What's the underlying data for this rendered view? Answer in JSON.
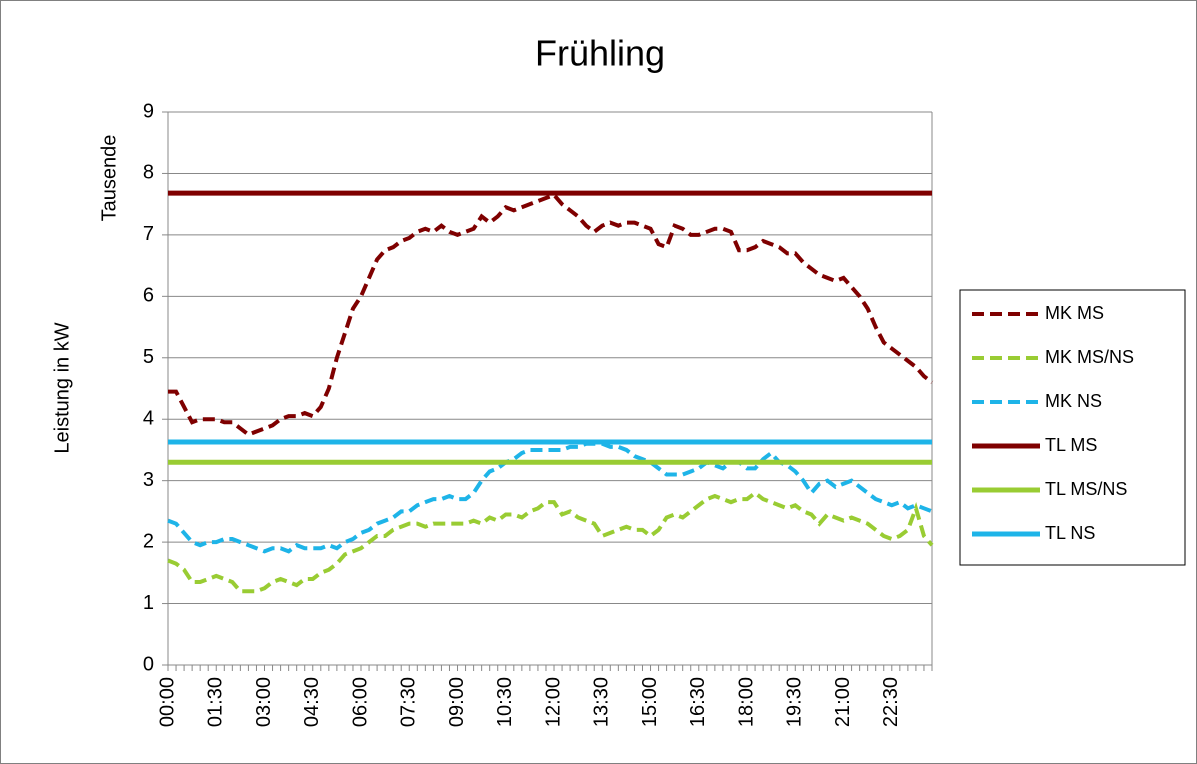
{
  "chart_data": {
    "type": "line",
    "title": "Frühling",
    "y_label": "Leistung in kW",
    "y_unit_label": "Tausende",
    "categories": [
      "00:00",
      null,
      null,
      null,
      null,
      null,
      "01:30",
      null,
      null,
      null,
      null,
      null,
      "03:00",
      null,
      null,
      null,
      null,
      null,
      "04:30",
      null,
      null,
      null,
      null,
      null,
      "06:00",
      null,
      null,
      null,
      null,
      null,
      "07:30",
      null,
      null,
      null,
      null,
      null,
      "09:00",
      null,
      null,
      null,
      null,
      null,
      "10:30",
      null,
      null,
      null,
      null,
      null,
      "12:00",
      null,
      null,
      null,
      null,
      null,
      "13:30",
      null,
      null,
      null,
      null,
      null,
      "15:00",
      null,
      null,
      null,
      null,
      null,
      "16:30",
      null,
      null,
      null,
      null,
      null,
      "18:00",
      null,
      null,
      null,
      null,
      null,
      "19:30",
      null,
      null,
      null,
      null,
      null,
      "21:00",
      null,
      null,
      null,
      null,
      null,
      "22:30",
      null,
      null,
      null,
      null,
      null
    ],
    "ylim": [
      0,
      9
    ],
    "yticks": [
      0,
      1,
      2,
      3,
      4,
      5,
      6,
      7,
      8,
      9
    ],
    "grid": true,
    "legend": "right",
    "series": [
      {
        "name": "MK MS",
        "color": "#7f0000",
        "dash": true,
        "values": [
          4.45,
          4.45,
          4.2,
          3.95,
          4.0,
          4.0,
          4.0,
          3.95,
          3.95,
          3.85,
          3.75,
          3.8,
          3.85,
          3.9,
          4.0,
          4.05,
          4.05,
          4.1,
          4.05,
          4.2,
          4.5,
          5.0,
          5.4,
          5.8,
          6.0,
          6.3,
          6.6,
          6.75,
          6.8,
          6.9,
          6.95,
          7.05,
          7.1,
          7.05,
          7.15,
          7.05,
          7.0,
          7.05,
          7.1,
          7.3,
          7.2,
          7.3,
          7.45,
          7.4,
          7.45,
          7.5,
          7.55,
          7.6,
          7.65,
          7.5,
          7.4,
          7.3,
          7.15,
          7.05,
          7.15,
          7.2,
          7.15,
          7.2,
          7.2,
          7.15,
          7.1,
          6.85,
          6.8,
          7.15,
          7.1,
          7.0,
          7.0,
          7.05,
          7.1,
          7.1,
          7.05,
          6.75,
          6.75,
          6.8,
          6.9,
          6.85,
          6.8,
          6.7,
          6.7,
          6.55,
          6.45,
          6.35,
          6.3,
          6.25,
          6.3,
          6.15,
          6.0,
          5.8,
          5.5,
          5.25,
          5.15,
          5.05,
          4.95,
          4.85,
          4.7,
          4.6
        ]
      },
      {
        "name": "MK MS/NS",
        "color": "#99cc33",
        "dash": true,
        "values": [
          1.7,
          1.65,
          1.55,
          1.35,
          1.35,
          1.4,
          1.45,
          1.4,
          1.35,
          1.2,
          1.2,
          1.2,
          1.25,
          1.35,
          1.4,
          1.35,
          1.3,
          1.4,
          1.4,
          1.5,
          1.55,
          1.65,
          1.8,
          1.85,
          1.9,
          2.0,
          2.1,
          2.1,
          2.2,
          2.25,
          2.3,
          2.3,
          2.25,
          2.3,
          2.3,
          2.3,
          2.3,
          2.3,
          2.35,
          2.3,
          2.4,
          2.35,
          2.45,
          2.45,
          2.4,
          2.5,
          2.55,
          2.65,
          2.65,
          2.45,
          2.5,
          2.4,
          2.35,
          2.3,
          2.1,
          2.15,
          2.2,
          2.25,
          2.2,
          2.2,
          2.1,
          2.2,
          2.4,
          2.45,
          2.4,
          2.5,
          2.6,
          2.7,
          2.75,
          2.7,
          2.65,
          2.7,
          2.7,
          2.8,
          2.7,
          2.65,
          2.6,
          2.55,
          2.6,
          2.5,
          2.45,
          2.3,
          2.45,
          2.4,
          2.35,
          2.4,
          2.35,
          2.3,
          2.2,
          2.1,
          2.05,
          2.1,
          2.2,
          2.55,
          2.1,
          1.95
        ]
      },
      {
        "name": "MK NS",
        "color": "#1eb4e8",
        "dash": true,
        "values": [
          2.35,
          2.3,
          2.15,
          2.0,
          1.95,
          2.0,
          2.0,
          2.05,
          2.05,
          2.0,
          1.95,
          1.9,
          1.85,
          1.9,
          1.9,
          1.85,
          1.95,
          1.9,
          1.9,
          1.9,
          1.95,
          1.9,
          2.0,
          2.05,
          2.15,
          2.2,
          2.3,
          2.35,
          2.4,
          2.5,
          2.5,
          2.6,
          2.65,
          2.7,
          2.7,
          2.75,
          2.7,
          2.7,
          2.8,
          3.0,
          3.15,
          3.2,
          3.3,
          3.35,
          3.45,
          3.5,
          3.5,
          3.5,
          3.5,
          3.5,
          3.55,
          3.55,
          3.6,
          3.6,
          3.6,
          3.55,
          3.55,
          3.5,
          3.4,
          3.35,
          3.3,
          3.2,
          3.1,
          3.1,
          3.1,
          3.15,
          3.2,
          3.3,
          3.25,
          3.2,
          3.3,
          3.3,
          3.2,
          3.2,
          3.35,
          3.45,
          3.3,
          3.25,
          3.15,
          3.0,
          2.8,
          2.95,
          3.0,
          2.9,
          2.95,
          3.0,
          2.9,
          2.8,
          2.7,
          2.65,
          2.6,
          2.65,
          2.55,
          2.6,
          2.55,
          2.5
        ]
      },
      {
        "name": "TL MS",
        "color": "#7f0000",
        "dash": false,
        "values": [
          7.68,
          7.68,
          7.68,
          7.68,
          7.68,
          7.68,
          7.68,
          7.68,
          7.68,
          7.68,
          7.68,
          7.68,
          7.68,
          7.68,
          7.68,
          7.68,
          7.68,
          7.68,
          7.68,
          7.68,
          7.68,
          7.68,
          7.68,
          7.68,
          7.68,
          7.68,
          7.68,
          7.68,
          7.68,
          7.68,
          7.68,
          7.68,
          7.68,
          7.68,
          7.68,
          7.68,
          7.68,
          7.68,
          7.68,
          7.68,
          7.68,
          7.68,
          7.68,
          7.68,
          7.68,
          7.68,
          7.68,
          7.68,
          7.68,
          7.68,
          7.68,
          7.68,
          7.68,
          7.68,
          7.68,
          7.68,
          7.68,
          7.68,
          7.68,
          7.68,
          7.68,
          7.68,
          7.68,
          7.68,
          7.68,
          7.68,
          7.68,
          7.68,
          7.68,
          7.68,
          7.68,
          7.68,
          7.68,
          7.68,
          7.68,
          7.68,
          7.68,
          7.68,
          7.68,
          7.68,
          7.68,
          7.68,
          7.68,
          7.68,
          7.68,
          7.68,
          7.68,
          7.68,
          7.68,
          7.68,
          7.68,
          7.68,
          7.68,
          7.68,
          7.68,
          7.68
        ]
      },
      {
        "name": "TL MS/NS",
        "color": "#99cc33",
        "dash": false,
        "values": [
          3.3,
          3.3,
          3.3,
          3.3,
          3.3,
          3.3,
          3.3,
          3.3,
          3.3,
          3.3,
          3.3,
          3.3,
          3.3,
          3.3,
          3.3,
          3.3,
          3.3,
          3.3,
          3.3,
          3.3,
          3.3,
          3.3,
          3.3,
          3.3,
          3.3,
          3.3,
          3.3,
          3.3,
          3.3,
          3.3,
          3.3,
          3.3,
          3.3,
          3.3,
          3.3,
          3.3,
          3.3,
          3.3,
          3.3,
          3.3,
          3.3,
          3.3,
          3.3,
          3.3,
          3.3,
          3.3,
          3.3,
          3.3,
          3.3,
          3.3,
          3.3,
          3.3,
          3.3,
          3.3,
          3.3,
          3.3,
          3.3,
          3.3,
          3.3,
          3.3,
          3.3,
          3.3,
          3.3,
          3.3,
          3.3,
          3.3,
          3.3,
          3.3,
          3.3,
          3.3,
          3.3,
          3.3,
          3.3,
          3.3,
          3.3,
          3.3,
          3.3,
          3.3,
          3.3,
          3.3,
          3.3,
          3.3,
          3.3,
          3.3,
          3.3,
          3.3,
          3.3,
          3.3,
          3.3,
          3.3,
          3.3,
          3.3,
          3.3,
          3.3,
          3.3,
          3.3
        ]
      },
      {
        "name": "TL NS",
        "color": "#1eb4e8",
        "dash": false,
        "values": [
          3.63,
          3.63,
          3.63,
          3.63,
          3.63,
          3.63,
          3.63,
          3.63,
          3.63,
          3.63,
          3.63,
          3.63,
          3.63,
          3.63,
          3.63,
          3.63,
          3.63,
          3.63,
          3.63,
          3.63,
          3.63,
          3.63,
          3.63,
          3.63,
          3.63,
          3.63,
          3.63,
          3.63,
          3.63,
          3.63,
          3.63,
          3.63,
          3.63,
          3.63,
          3.63,
          3.63,
          3.63,
          3.63,
          3.63,
          3.63,
          3.63,
          3.63,
          3.63,
          3.63,
          3.63,
          3.63,
          3.63,
          3.63,
          3.63,
          3.63,
          3.63,
          3.63,
          3.63,
          3.63,
          3.63,
          3.63,
          3.63,
          3.63,
          3.63,
          3.63,
          3.63,
          3.63,
          3.63,
          3.63,
          3.63,
          3.63,
          3.63,
          3.63,
          3.63,
          3.63,
          3.63,
          3.63,
          3.63,
          3.63,
          3.63,
          3.63,
          3.63,
          3.63,
          3.63,
          3.63,
          3.63,
          3.63,
          3.63,
          3.63,
          3.63,
          3.63,
          3.63,
          3.63,
          3.63,
          3.63,
          3.63,
          3.63,
          3.63,
          3.63,
          3.63,
          3.63
        ]
      }
    ]
  }
}
